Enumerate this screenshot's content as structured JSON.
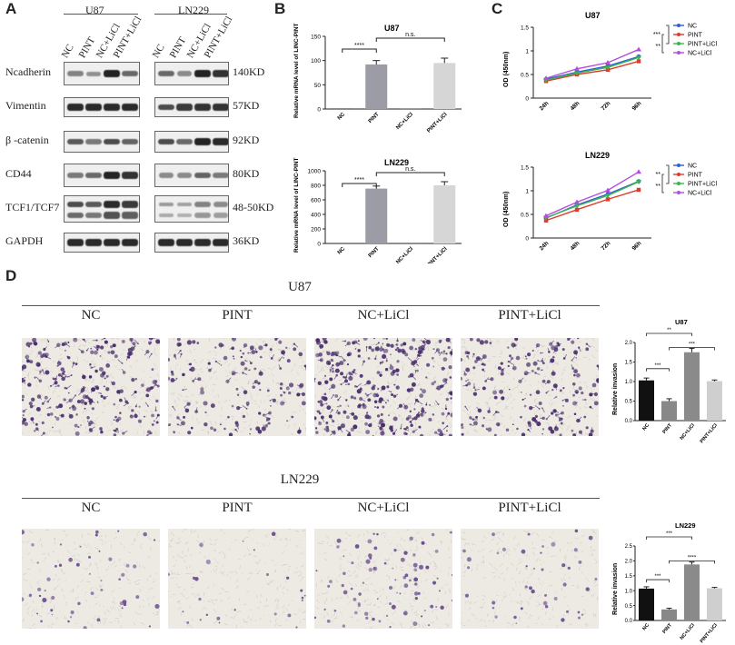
{
  "panels": {
    "A": "A",
    "B": "B",
    "C": "C",
    "D": "D"
  },
  "blot": {
    "cell_lines": [
      "U87",
      "LN229"
    ],
    "lanes": [
      "NC",
      "PINT",
      "NC+LiCl",
      "PINT+LiCl"
    ],
    "rows": [
      {
        "protein": "Ncadherin",
        "size": "140KD",
        "u87": [
          0.35,
          0.25,
          0.95,
          0.5
        ],
        "ln229": [
          0.5,
          0.3,
          0.95,
          0.85
        ]
      },
      {
        "protein": "Vimentin",
        "size": "57KD",
        "u87": [
          0.9,
          0.9,
          0.9,
          0.9
        ],
        "ln229": [
          0.7,
          0.8,
          0.85,
          0.85
        ]
      },
      {
        "protein": "β -catenin",
        "size": "92KD",
        "u87": [
          0.6,
          0.4,
          0.7,
          0.55
        ],
        "ln229": [
          0.7,
          0.5,
          0.95,
          0.9
        ]
      },
      {
        "protein": "CD44",
        "size": "80KD",
        "u87": [
          0.4,
          0.5,
          0.95,
          0.85
        ],
        "ln229": [
          0.3,
          0.3,
          0.55,
          0.4
        ]
      },
      {
        "protein": "TCF1/TCF7",
        "size": "48-50KD",
        "u87": [
          0.7,
          0.6,
          0.9,
          0.8
        ],
        "ln229": [
          0.2,
          0.15,
          0.35,
          0.3
        ]
      },
      {
        "protein": "GAPDH",
        "size": "36KD",
        "u87": [
          0.9,
          0.9,
          0.9,
          0.9
        ],
        "ln229": [
          0.9,
          0.9,
          0.9,
          0.9
        ]
      }
    ]
  },
  "panel_b": [
    {
      "title": "U87",
      "ylabel": "Relative mRNA level of LINC-PINT",
      "categories": [
        "NC",
        "PINT",
        "NC+LiCl",
        "PINT+LiCl"
      ],
      "values": [
        1,
        92,
        1,
        95
      ],
      "errors": [
        0,
        8,
        0,
        10
      ],
      "ylim": [
        0,
        150
      ],
      "yticks": [
        0,
        50,
        100,
        150
      ],
      "sig": [
        {
          "from": 0,
          "to": 1,
          "label": "****"
        },
        {
          "from": 1,
          "to": 3,
          "label": "n.s."
        }
      ]
    },
    {
      "title": "LN229",
      "ylabel": "Relative mRNA level of LINC-PINT",
      "categories": [
        "NC",
        "PINT",
        "NC+LiCl",
        "PINT+LiCl"
      ],
      "values": [
        1,
        755,
        1,
        800
      ],
      "errors": [
        0,
        35,
        0,
        50
      ],
      "ylim": [
        0,
        1000
      ],
      "yticks": [
        0,
        200,
        400,
        600,
        800,
        1000
      ],
      "sig": [
        {
          "from": 0,
          "to": 1,
          "label": "****"
        },
        {
          "from": 1,
          "to": 3,
          "label": "n.s."
        }
      ]
    }
  ],
  "panel_c": [
    {
      "title": "U87",
      "ylabel": "OD (450nm)",
      "x": [
        "24h",
        "48h",
        "72h",
        "96h"
      ],
      "ylim": [
        0,
        1.5
      ],
      "yticks": [
        0,
        0.5,
        1,
        1.5
      ],
      "series": [
        {
          "name": "NC",
          "color": "#2e5fd6",
          "values": [
            0.4,
            0.55,
            0.68,
            0.88
          ]
        },
        {
          "name": "PINT",
          "color": "#e03a2a",
          "values": [
            0.36,
            0.5,
            0.6,
            0.78
          ]
        },
        {
          "name": "PINT+LiCl",
          "color": "#3ab54a",
          "values": [
            0.38,
            0.53,
            0.65,
            0.86
          ]
        },
        {
          "name": "NC+LiCl",
          "color": "#b44ee0",
          "values": [
            0.42,
            0.62,
            0.75,
            1.03
          ]
        }
      ],
      "sig": [
        "***",
        "**"
      ]
    },
    {
      "title": "LN229",
      "ylabel": "OD (450nm)",
      "x": [
        "24h",
        "48h",
        "72h",
        "96h"
      ],
      "ylim": [
        0,
        1.5
      ],
      "yticks": [
        0,
        0.5,
        1,
        1.5
      ],
      "series": [
        {
          "name": "NC",
          "color": "#2e5fd6",
          "values": [
            0.42,
            0.7,
            0.93,
            1.2
          ]
        },
        {
          "name": "PINT",
          "color": "#e03a2a",
          "values": [
            0.37,
            0.6,
            0.82,
            1.02
          ]
        },
        {
          "name": "PINT+LiCl",
          "color": "#3ab54a",
          "values": [
            0.43,
            0.68,
            0.9,
            1.19
          ]
        },
        {
          "name": "NC+LiCl",
          "color": "#b44ee0",
          "values": [
            0.47,
            0.76,
            1.01,
            1.4
          ]
        }
      ],
      "sig": [
        "**",
        "**"
      ]
    }
  ],
  "panel_d": {
    "groups": [
      {
        "cell_line": "U87",
        "labels": [
          "NC",
          "PINT",
          "NC+LiCl",
          "PINT+LiCl"
        ],
        "density": [
          0.55,
          0.35,
          0.75,
          0.45
        ],
        "color": "#4a2f6e"
      },
      {
        "cell_line": "LN229",
        "labels": [
          "NC",
          "PINT",
          "NC+LiCl",
          "PINT+LiCl"
        ],
        "density": [
          0.12,
          0.06,
          0.2,
          0.1
        ],
        "color": "#6a4e8e"
      }
    ],
    "bars": [
      {
        "title": "U87",
        "ylabel": "Relative invasion",
        "categories": [
          "NC",
          "PINT",
          "NC+LiCl",
          "PINT+LiCl"
        ],
        "values": [
          1.03,
          0.5,
          1.75,
          1.01
        ],
        "errors": [
          0.06,
          0.06,
          0.1,
          0.03
        ],
        "colors": [
          "#111111",
          "#888888",
          "#8a8a8a",
          "#cfcfcf"
        ],
        "ylim": [
          0,
          2.0
        ],
        "yticks": [
          "0.0",
          "0.5",
          "1.0",
          "1.5",
          "2.0"
        ],
        "sig": [
          {
            "from": 0,
            "to": 1,
            "label": "***"
          },
          {
            "from": 0,
            "to": 2,
            "label": "**"
          },
          {
            "from": 1,
            "to": 3,
            "label": "***"
          }
        ]
      },
      {
        "title": "LN229",
        "ylabel": "Relative invasion",
        "categories": [
          "NC",
          "PINT",
          "NC+LiCl",
          "PINT+LiCl"
        ],
        "values": [
          1.07,
          0.37,
          1.88,
          1.08
        ],
        "errors": [
          0.06,
          0.04,
          0.08,
          0.03
        ],
        "colors": [
          "#111111",
          "#888888",
          "#8a8a8a",
          "#cfcfcf"
        ],
        "ylim": [
          0,
          2.5
        ],
        "yticks": [
          "0.0",
          "0.5",
          "1.0",
          "1.5",
          "2.0",
          "2.5"
        ],
        "sig": [
          {
            "from": 0,
            "to": 1,
            "label": "***"
          },
          {
            "from": 0,
            "to": 2,
            "label": "***"
          },
          {
            "from": 1,
            "to": 3,
            "label": "****"
          }
        ]
      }
    ]
  }
}
